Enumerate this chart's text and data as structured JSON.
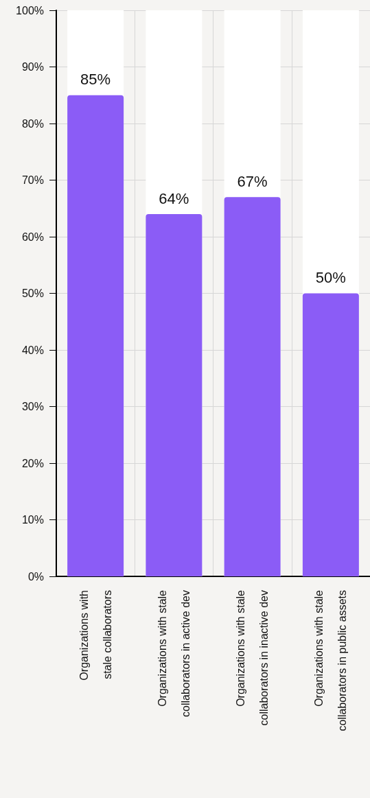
{
  "chart_data": {
    "type": "bar",
    "categories": [
      "Organizations with\nstale collaborators",
      "Organizations with stale\ncollaborators in active dev",
      "Organizations with stale\ncollaborators in inactive dev",
      "Organizations with stale\ncollaborators in public assets"
    ],
    "values": [
      85,
      64,
      67,
      50
    ],
    "color": "#8b5cf6",
    "value_labels": [
      "85%",
      "64%",
      "67%",
      "50%"
    ],
    "ylim": [
      0,
      100
    ],
    "yticks": [
      {
        "value": 0,
        "label": "0%"
      },
      {
        "value": 10,
        "label": "10%"
      },
      {
        "value": 20,
        "label": "20%"
      },
      {
        "value": 30,
        "label": "30%"
      },
      {
        "value": 40,
        "label": "40%"
      },
      {
        "value": 50,
        "label": "50%"
      },
      {
        "value": 60,
        "label": "60%"
      },
      {
        "value": 70,
        "label": "70%"
      },
      {
        "value": 80,
        "label": "80%"
      },
      {
        "value": 90,
        "label": "90%"
      },
      {
        "value": 100,
        "label": "100%"
      }
    ],
    "grid": true
  }
}
